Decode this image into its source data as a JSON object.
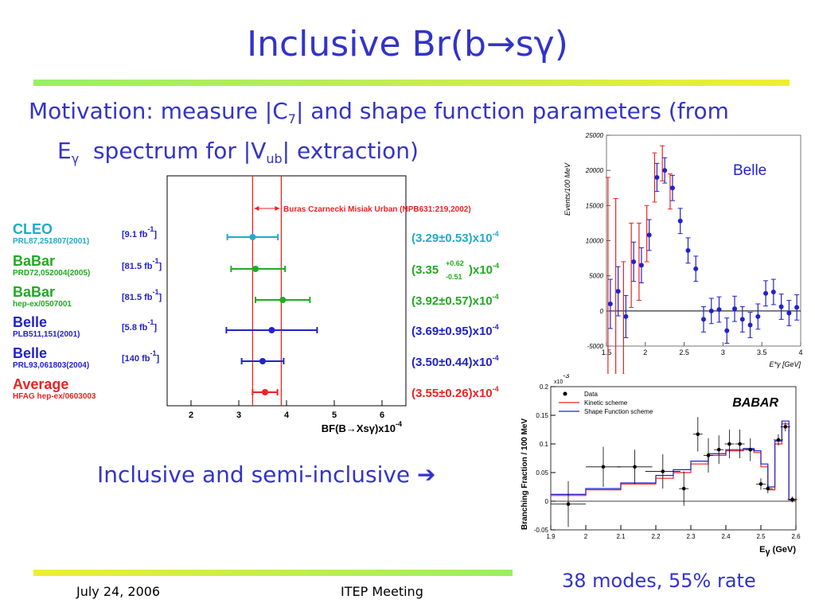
{
  "slide": {
    "title": "Inclusive Br(b→sγ)",
    "motivation": {
      "line1_a": "Motivation: measure |C",
      "line1_sub": "7",
      "line1_b": "| and shape function parameters (from",
      "line2_a": "E",
      "line2_sub": "γ",
      "line2_b": "  spectrum for |V",
      "line2_sub2": "ub",
      "line2_c": "| extraction)"
    },
    "inclusive_text": "Inclusive and semi-inclusive ➔",
    "modes_text": "38 modes, 55% rate",
    "colors": {
      "title": "#3333cc",
      "bar_green": "#99ee66",
      "bar_yellow": "#eeee33"
    }
  },
  "footer": {
    "date": "July 24, 2006",
    "meeting": "ITEP Meeting"
  },
  "chart_data": [
    {
      "type": "scatter",
      "title": "",
      "xlabel": "BF(B→Xsγ)x10",
      "xlabel_exp": "-4",
      "xlim": [
        1.5,
        6.5
      ],
      "xticks": [
        "2",
        "3",
        "4",
        "5",
        "6"
      ],
      "band": {
        "low": 3.29,
        "high": 3.89,
        "label": "Buras Czarnecki Misiak Urban (NPB631:219,2002)",
        "color": "#ee2222"
      },
      "entries": [
        {
          "name": "CLEO",
          "ref": "PRL87,251807(2001)",
          "lumi": "[9.1 fb",
          "lumi_exp": "-1",
          "lumi_end": "]",
          "value": 3.29,
          "err_lo": 0.53,
          "err_hi": 0.53,
          "result": "(3.29±0.53)x10",
          "result_exp": "-4",
          "color": "#22aacc"
        },
        {
          "name": "BaBar",
          "ref": "PRD72,052004(2005)",
          "lumi": "[81.5 fb",
          "lumi_exp": "-1",
          "lumi_end": "]",
          "value": 3.35,
          "err_lo": 0.51,
          "err_hi": 0.62,
          "result_a": "(3.35",
          "result_hi": "+0.62",
          "result_lo": "-0.51",
          "result_b": ")x10",
          "result_exp": "-4",
          "color": "#22aa22"
        },
        {
          "name": "BaBar",
          "ref": "hep-ex/0507001",
          "lumi": "[81.5 fb",
          "lumi_exp": "-1",
          "lumi_end": "]",
          "value": 3.92,
          "err_lo": 0.57,
          "err_hi": 0.57,
          "result": "(3.92±0.57)x10",
          "result_exp": "-4",
          "color": "#22aa22"
        },
        {
          "name": "Belle",
          "ref": "PLB511,151(2001)",
          "lumi": "[5.8 fb",
          "lumi_exp": "-1",
          "lumi_end": "]",
          "value": 3.69,
          "err_lo": 0.95,
          "err_hi": 0.95,
          "result": "(3.69±0.95)x10",
          "result_exp": "-4",
          "color": "#2222cc"
        },
        {
          "name": "Belle",
          "ref": "PRL93,061803(2004)",
          "lumi": "[140 fb",
          "lumi_exp": "-1",
          "lumi_end": "]",
          "value": 3.5,
          "err_lo": 0.44,
          "err_hi": 0.44,
          "result": "(3.50±0.44)x10",
          "result_exp": "-4",
          "color": "#2222cc"
        },
        {
          "name": "Average",
          "ref": "HFAG hep-ex/0603003",
          "lumi": "",
          "lumi_exp": "",
          "lumi_end": "",
          "value": 3.55,
          "err_lo": 0.26,
          "err_hi": 0.26,
          "result": "(3.55±0.26)x10",
          "result_exp": "-4",
          "color": "#ee2222"
        }
      ]
    },
    {
      "type": "scatter",
      "legend_text": "Belle",
      "ylabel": "Events/100 MeV",
      "xlabel": "E*γ [GeV]",
      "xlim": [
        1.5,
        4.0
      ],
      "ylim": [
        -5000,
        25000
      ],
      "xticks": [
        "1.5",
        "2",
        "2.5",
        "3",
        "3.5",
        "4"
      ],
      "yticks": [
        "-5000",
        "0",
        "5000",
        "10000",
        "15000",
        "20000",
        "25000"
      ],
      "red_series": {
        "x": [
          1.55,
          1.65,
          1.75,
          1.85,
          1.95,
          2.05,
          2.15,
          2.25,
          2.35
        ],
        "y": [
          1000,
          3000,
          -1000,
          6500,
          7000,
          11000,
          19000,
          21000,
          17000
        ],
        "err": [
          18000,
          13000,
          8000,
          6000,
          5500,
          4000,
          3500,
          2500,
          2500
        ]
      },
      "blue_series": {
        "x": [
          1.55,
          1.65,
          1.75,
          1.85,
          1.95,
          2.05,
          2.15,
          2.25,
          2.35,
          2.45,
          2.55,
          2.65,
          2.75,
          2.85,
          2.95,
          3.05,
          3.15,
          3.25,
          3.35,
          3.45,
          3.55,
          3.65,
          3.75,
          3.85,
          3.95
        ],
        "y": [
          1000,
          2800,
          -800,
          7000,
          6500,
          10800,
          19000,
          20000,
          17500,
          12800,
          8600,
          6000,
          -1200,
          0,
          200,
          -2800,
          300,
          -1200,
          -2000,
          -800,
          2500,
          2700,
          600,
          -300,
          500
        ],
        "err": [
          3500,
          3500,
          3000,
          2800,
          2500,
          2200,
          2000,
          1800,
          1800,
          1800,
          1800,
          1800,
          1800,
          1800,
          1800,
          1800,
          1800,
          1800,
          1800,
          1800,
          1800,
          1800,
          1800,
          1800,
          1800
        ]
      }
    },
    {
      "type": "line",
      "brand": "BABAR",
      "ylabel": "Branching Fraction / 100 MeV",
      "xlabel": "E",
      "xlabel_sub": "γ",
      "xlabel_end": " (GeV)",
      "y_exponent": "x10",
      "y_exponent_exp": "-3",
      "xlim": [
        1.9,
        2.6
      ],
      "ylim": [
        -0.05,
        0.2
      ],
      "xticks": [
        "1.9",
        "2",
        "2.1",
        "2.2",
        "2.3",
        "2.4",
        "2.5",
        "2.6"
      ],
      "yticks": [
        "-0.05",
        "0",
        "0.05",
        "0.1",
        "0.15",
        "0.2"
      ],
      "legend": [
        "Data",
        "Kinetic scheme",
        "Shape Function scheme"
      ],
      "data": {
        "x": [
          1.95,
          2.05,
          2.14,
          2.22,
          2.28,
          2.32,
          2.35,
          2.38,
          2.41,
          2.44,
          2.47,
          2.5,
          2.52,
          2.55,
          2.57,
          2.59
        ],
        "y": [
          -0.005,
          0.06,
          0.06,
          0.052,
          0.022,
          0.117,
          0.08,
          0.09,
          0.1,
          0.1,
          0.09,
          0.03,
          0.022,
          0.107,
          0.13,
          0.003
        ],
        "err": [
          0.04,
          0.035,
          0.03,
          0.03,
          0.03,
          0.03,
          0.03,
          0.025,
          0.025,
          0.025,
          0.02,
          0.01,
          0.008,
          0.01,
          0.008,
          0.005
        ]
      },
      "kinetic": {
        "x": [
          1.9,
          2.0,
          2.1,
          2.2,
          2.25,
          2.3,
          2.35,
          2.4,
          2.45,
          2.48,
          2.5,
          2.52,
          2.54,
          2.56,
          2.58,
          2.6
        ],
        "y": [
          0.01,
          0.02,
          0.03,
          0.04,
          0.05,
          0.065,
          0.08,
          0.088,
          0.09,
          0.085,
          0.06,
          0.02,
          0.1,
          0.135,
          0.002,
          0.0
        ]
      },
      "shape": {
        "x": [
          1.9,
          2.0,
          2.1,
          2.2,
          2.25,
          2.3,
          2.35,
          2.4,
          2.45,
          2.48,
          2.5,
          2.52,
          2.54,
          2.56,
          2.58,
          2.6
        ],
        "y": [
          0.012,
          0.022,
          0.032,
          0.045,
          0.055,
          0.07,
          0.083,
          0.09,
          0.092,
          0.088,
          0.065,
          0.025,
          0.105,
          0.14,
          0.003,
          0.0
        ]
      }
    }
  ]
}
